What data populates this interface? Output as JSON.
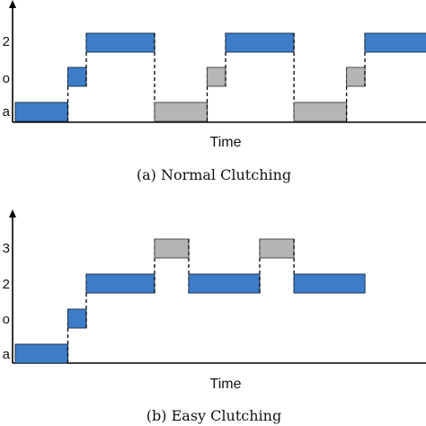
{
  "colors": {
    "blue_segment": "#3d7dc8",
    "gray_segment": "#b5b5b5"
  },
  "panels": [
    {
      "id": "normal",
      "caption": "(a) Normal Clutching",
      "x_axis_label": "Time",
      "levels": [
        "a",
        "o",
        "2"
      ],
      "segments": [
        {
          "level": "a",
          "start": 0,
          "end": 1,
          "color": "blue"
        },
        {
          "level": "o",
          "start": 1,
          "end": 1.35,
          "color": "blue"
        },
        {
          "level": "2",
          "start": 1.35,
          "end": 2.65,
          "color": "blue"
        },
        {
          "level": "a",
          "start": 2.65,
          "end": 3.65,
          "color": "gray"
        },
        {
          "level": "o",
          "start": 3.65,
          "end": 4.0,
          "color": "gray"
        },
        {
          "level": "2",
          "start": 4.0,
          "end": 5.3,
          "color": "blue"
        },
        {
          "level": "a",
          "start": 5.3,
          "end": 6.3,
          "color": "gray"
        },
        {
          "level": "o",
          "start": 6.3,
          "end": 6.65,
          "color": "gray"
        },
        {
          "level": "2",
          "start": 6.65,
          "end": 8.0,
          "color": "blue"
        }
      ]
    },
    {
      "id": "easy",
      "caption": "(b) Easy Clutching",
      "x_axis_label": "Time",
      "levels": [
        "a",
        "o",
        "2",
        "3"
      ],
      "segments": [
        {
          "level": "a",
          "start": 0,
          "end": 1,
          "color": "blue"
        },
        {
          "level": "o",
          "start": 1,
          "end": 1.35,
          "color": "blue"
        },
        {
          "level": "2",
          "start": 1.35,
          "end": 2.65,
          "color": "blue"
        },
        {
          "level": "3",
          "start": 2.65,
          "end": 3.3,
          "color": "gray"
        },
        {
          "level": "2",
          "start": 3.3,
          "end": 4.65,
          "color": "blue"
        },
        {
          "level": "3",
          "start": 4.65,
          "end": 5.3,
          "color": "gray"
        },
        {
          "level": "2",
          "start": 5.3,
          "end": 6.65,
          "color": "blue"
        }
      ]
    }
  ]
}
